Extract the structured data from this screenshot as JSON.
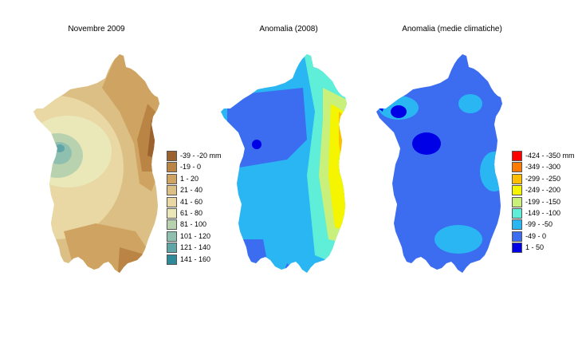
{
  "maps": [
    {
      "title": "Novembre 2009"
    },
    {
      "title": "Anomalia (2008)"
    },
    {
      "title": "Anomalia (medie climatiche)"
    }
  ],
  "legend_rain": {
    "items": [
      {
        "label": "-39 - -20 mm",
        "color": "#9b6230"
      },
      {
        "label": "-19 - 0",
        "color": "#b98444"
      },
      {
        "label": "1 - 20",
        "color": "#cfa462"
      },
      {
        "label": "21 - 40",
        "color": "#dcbf84"
      },
      {
        "label": "41 - 60",
        "color": "#e9d8a4"
      },
      {
        "label": "61 - 80",
        "color": "#eae8b8"
      },
      {
        "label": "81 - 100",
        "color": "#b8d2b0"
      },
      {
        "label": "101 - 120",
        "color": "#8fbfae"
      },
      {
        "label": "121 - 140",
        "color": "#5fa5a8"
      },
      {
        "label": "141 - 160",
        "color": "#2e8a98"
      }
    ]
  },
  "legend_anomaly": {
    "items": [
      {
        "label": "-424 - -350 mm",
        "color": "#ff0000"
      },
      {
        "label": "-349 - -300",
        "color": "#ff7a00"
      },
      {
        "label": "-299 - -250",
        "color": "#ffbe00"
      },
      {
        "label": "-249 - -200",
        "color": "#f5f500"
      },
      {
        "label": "-199 - -150",
        "color": "#c8f07a"
      },
      {
        "label": "-149 - -100",
        "color": "#5fefd8"
      },
      {
        "label": "-99 - -50",
        "color": "#2ab6f2"
      },
      {
        "label": "-49 - 0",
        "color": "#3c6cf0"
      },
      {
        "label": "1 - 50",
        "color": "#0000e6"
      }
    ]
  }
}
